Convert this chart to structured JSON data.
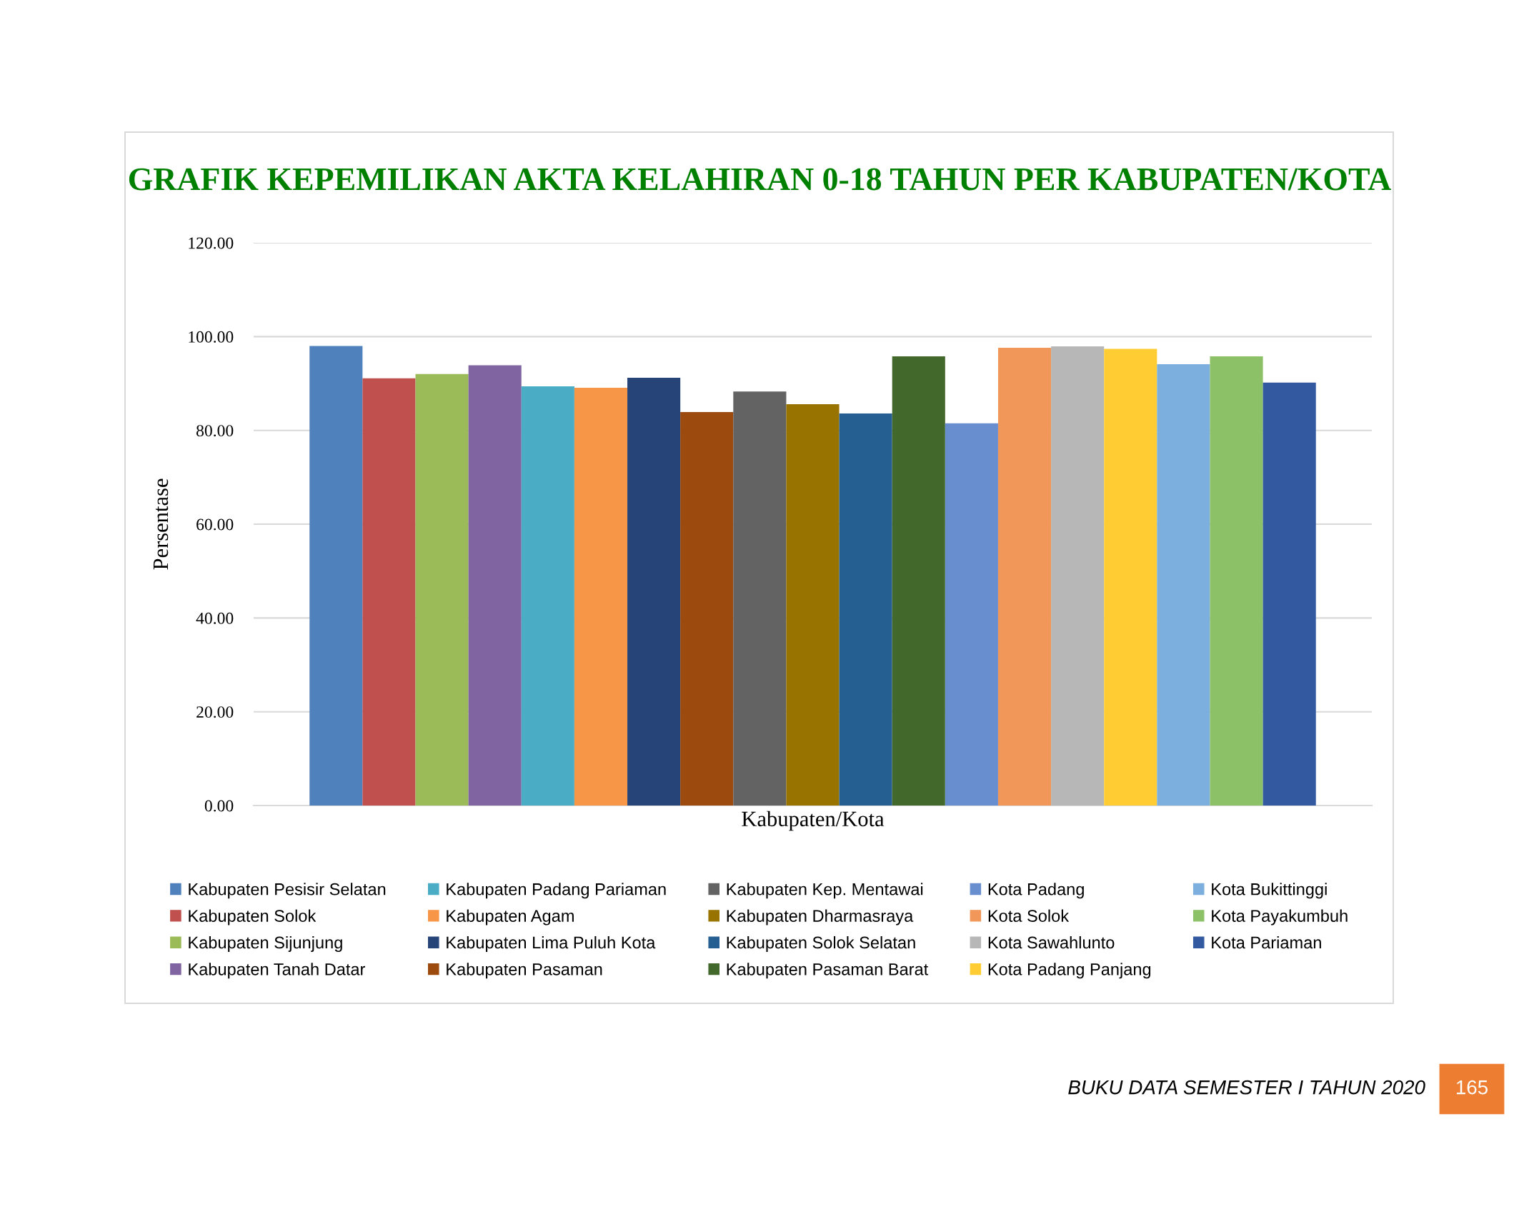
{
  "chart_data": {
    "type": "bar",
    "title": "GRAFIK KEPEMILIKAN AKTA KELAHIRAN 0-18 TAHUN PER KABUPATEN/KOTA",
    "xlabel": "Kabupaten/Kota",
    "ylabel": "Persentase",
    "categories": [
      null
    ],
    "series": [
      {
        "name": "Kabupaten Pesisir Selatan",
        "color": "#4f81bd",
        "values": [
          98.0
        ]
      },
      {
        "name": "Kabupaten Solok",
        "color": "#c0504d",
        "values": [
          91.1
        ]
      },
      {
        "name": "Kabupaten Sijunjung",
        "color": "#9bbb59",
        "values": [
          92.0
        ]
      },
      {
        "name": "Kabupaten Tanah Datar",
        "color": "#8064a2",
        "values": [
          93.9
        ]
      },
      {
        "name": "Kabupaten Padang Pariaman",
        "color": "#4bacc6",
        "values": [
          89.4
        ]
      },
      {
        "name": "Kabupaten Agam",
        "color": "#f79646",
        "values": [
          89.1
        ]
      },
      {
        "name": "Kabupaten Lima Puluh Kota",
        "color": "#264478",
        "values": [
          91.2
        ]
      },
      {
        "name": "Kabupaten Pasaman",
        "color": "#9c4a0e",
        "values": [
          83.9
        ]
      },
      {
        "name": "Kabupaten Kep. Mentawai",
        "color": "#636363",
        "values": [
          88.3
        ]
      },
      {
        "name": "Kabupaten Dharmasraya",
        "color": "#997300",
        "values": [
          85.6
        ]
      },
      {
        "name": "Kabupaten Solok Selatan",
        "color": "#255e91",
        "values": [
          83.6
        ]
      },
      {
        "name": "Kabupaten Pasaman Barat",
        "color": "#43682b",
        "values": [
          95.8
        ]
      },
      {
        "name": "Kota Padang",
        "color": "#698ed0",
        "values": [
          81.5
        ]
      },
      {
        "name": "Kota Solok",
        "color": "#f1975a",
        "values": [
          97.6
        ]
      },
      {
        "name": "Kota Sawahlunto",
        "color": "#b7b7b7",
        "values": [
          97.9
        ]
      },
      {
        "name": "Kota Padang Panjang",
        "color": "#ffcd33",
        "values": [
          97.4
        ]
      },
      {
        "name": "Kota Bukittinggi",
        "color": "#7cafdd",
        "values": [
          94.1
        ]
      },
      {
        "name": "Kota Payakumbuh",
        "color": "#8cc168",
        "values": [
          95.8
        ]
      },
      {
        "name": "Kota Pariaman",
        "color": "#335aa1",
        "values": [
          90.2
        ]
      }
    ],
    "ylim": [
      0,
      120
    ],
    "yticks": [
      {
        "value": 0,
        "label": "0.00"
      },
      {
        "value": 20,
        "label": "20.00"
      },
      {
        "value": 40,
        "label": "40.00"
      },
      {
        "value": 60,
        "label": "60.00"
      },
      {
        "value": 80,
        "label": "80.00"
      },
      {
        "value": 100,
        "label": "100.00"
      },
      {
        "value": 120,
        "label": "120.00"
      }
    ],
    "grid": "y",
    "legend": "bottom",
    "annotations": [
      "BUKU DATA SEMESTER I TAHUN 2020",
      "165"
    ]
  }
}
